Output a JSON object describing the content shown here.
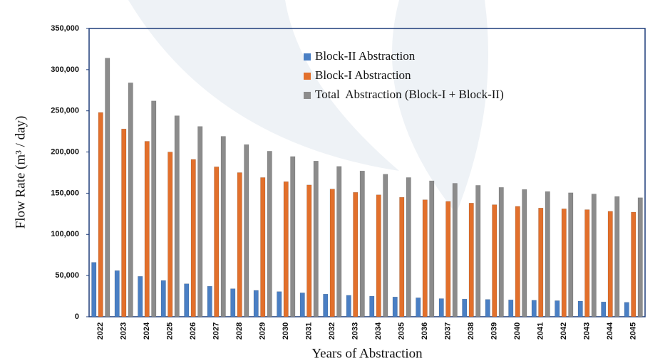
{
  "chart_data": {
    "type": "bar",
    "y_label": "Flow Rate (m³ / day)",
    "x_label": "Years of Abstraction",
    "categories": [
      "2022",
      "2023",
      "2024",
      "2025",
      "2026",
      "2027",
      "2028",
      "2029",
      "2030",
      "2031",
      "2032",
      "2033",
      "2034",
      "2035",
      "2036",
      "2037",
      "2038",
      "2039",
      "2040",
      "2041",
      "2042",
      "2043",
      "2044",
      "2045"
    ],
    "series": [
      {
        "name": "Block-II Abstraction",
        "color": "#4a7fc4",
        "values": [
          66000,
          56000,
          49000,
          44000,
          40000,
          37000,
          34000,
          32000,
          30500,
          29000,
          27500,
          26000,
          25000,
          24000,
          23000,
          22000,
          21500,
          21000,
          20500,
          20000,
          19500,
          19000,
          18000,
          17500
        ]
      },
      {
        "name": "Block-I Abstraction",
        "color": "#e2702c",
        "values": [
          248000,
          228000,
          213000,
          200000,
          191000,
          182000,
          175000,
          169000,
          164000,
          160000,
          155000,
          151000,
          148000,
          145000,
          142000,
          140000,
          138000,
          136000,
          134000,
          132000,
          131000,
          130000,
          128000,
          127000
        ]
      },
      {
        "name": "Total  Abstraction (Block-I + Block-II)",
        "color": "#8c8c8c",
        "values": [
          314000,
          284000,
          262000,
          244000,
          231000,
          219000,
          209000,
          201000,
          194500,
          189000,
          182500,
          177000,
          173000,
          169000,
          165000,
          162000,
          159500,
          157000,
          154500,
          152000,
          150500,
          149000,
          146000,
          144500
        ]
      }
    ],
    "ylim": [
      0,
      350000
    ],
    "yticks": [
      0,
      {
        "value": 50000,
        "label": "50,000"
      },
      {
        "value": 100000,
        "label": "100,000"
      },
      {
        "value": 150000,
        "label": "150,000"
      },
      {
        "value": 200000,
        "label": "200,000"
      },
      {
        "value": 250000,
        "label": "250,000"
      },
      {
        "value": 300000,
        "label": "300,000"
      },
      {
        "value": 350000,
        "label": "350,000"
      }
    ],
    "grid": false
  }
}
